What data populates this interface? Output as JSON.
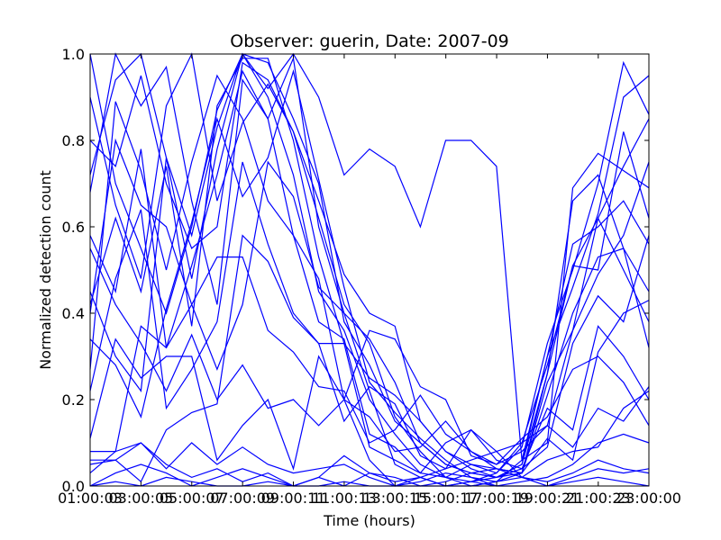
{
  "chart_data": {
    "type": "line",
    "title": "Observer: guerin, Date: 2007-09",
    "xlabel": "Time (hours)",
    "ylabel": "Normalized detection count",
    "xlim": [
      "01:00:00",
      "23:00:00"
    ],
    "ylim": [
      0.0,
      1.0
    ],
    "grid": false,
    "legend": "none",
    "line_color": "#0000ff",
    "x_tick_labels": [
      "01:00:03",
      "03:00:05",
      "05:00:07",
      "07:00:09",
      "09:00:11",
      "11:00:13",
      "13:00:15",
      "15:00:17",
      "17:00:19",
      "19:00:21",
      "21:00:23",
      "23:00:00"
    ],
    "y_tick_labels": [
      "0.0",
      "0.2",
      "0.4",
      "0.6",
      "0.8",
      "1.0"
    ],
    "x": [
      "01:00",
      "02:00",
      "03:00",
      "04:00",
      "05:00",
      "06:00",
      "07:00",
      "08:00",
      "09:00",
      "10:00",
      "11:00",
      "12:00",
      "13:00",
      "14:00",
      "15:00",
      "16:00",
      "17:00",
      "18:00",
      "19:00",
      "20:00",
      "21:00",
      "22:00",
      "23:00"
    ],
    "series": [
      {
        "values": [
          0.72,
          0.94,
          1.0,
          0.76,
          0.58,
          0.83,
          1.0,
          0.92,
          1.0,
          0.9,
          0.72,
          0.78,
          0.74,
          0.6,
          0.8,
          0.8,
          0.74,
          0.06,
          0.1,
          0.69,
          0.77,
          0.73,
          0.69
        ]
      },
      {
        "values": [
          1.0,
          0.7,
          0.55,
          0.4,
          0.6,
          0.87,
          1.0,
          0.98,
          0.85,
          0.7,
          0.38,
          0.28,
          0.15,
          0.1,
          0.05,
          0.03,
          0.02,
          0.05,
          0.26,
          0.51,
          0.62,
          0.74,
          0.85
        ]
      },
      {
        "values": [
          0.58,
          0.45,
          0.78,
          0.32,
          0.51,
          0.72,
          0.96,
          0.85,
          0.99,
          0.6,
          0.4,
          0.22,
          0.05,
          0.02,
          0.0,
          0.01,
          0.02,
          0.05,
          0.3,
          0.56,
          0.6,
          0.66,
          0.56
        ]
      },
      {
        "values": [
          0.42,
          0.62,
          0.45,
          0.74,
          0.37,
          0.88,
          0.99,
          0.99,
          0.8,
          0.53,
          0.33,
          0.25,
          0.21,
          0.15,
          0.08,
          0.05,
          0.04,
          0.03,
          0.21,
          0.4,
          0.53,
          0.55,
          0.45
        ]
      },
      {
        "values": [
          0.27,
          0.89,
          0.73,
          0.5,
          0.75,
          0.95,
          0.85,
          0.66,
          0.58,
          0.48,
          0.2,
          0.06,
          0.0,
          0.02,
          0.04,
          0.06,
          0.08,
          0.1,
          0.14,
          0.36,
          0.49,
          0.58,
          0.75
        ]
      },
      {
        "values": [
          0.8,
          0.74,
          0.95,
          0.7,
          0.55,
          0.6,
          0.98,
          0.94,
          0.82,
          0.62,
          0.42,
          0.33,
          0.16,
          0.08,
          0.02,
          0.01,
          0.03,
          0.09,
          0.33,
          0.5,
          0.7,
          0.98,
          0.86
        ]
      },
      {
        "values": [
          0.45,
          0.3,
          0.22,
          0.76,
          0.48,
          0.78,
          1.0,
          0.9,
          0.72,
          0.45,
          0.36,
          0.2,
          0.12,
          0.05,
          0.02,
          0.0,
          0.01,
          0.03,
          0.24,
          0.36,
          0.62,
          0.5,
          0.38
        ]
      },
      {
        "values": [
          0.22,
          0.48,
          0.64,
          0.18,
          0.27,
          0.38,
          0.75,
          0.56,
          0.4,
          0.33,
          0.33,
          0.09,
          0.06,
          0.03,
          0.1,
          0.13,
          0.06,
          0.04,
          0.18,
          0.13,
          0.37,
          0.3,
          0.2
        ]
      },
      {
        "values": [
          0.08,
          0.08,
          0.37,
          0.32,
          0.42,
          0.53,
          0.53,
          0.36,
          0.31,
          0.23,
          0.22,
          0.1,
          0.13,
          0.21,
          0.12,
          0.08,
          0.04,
          0.03,
          0.11,
          0.06,
          0.31,
          0.4,
          0.43
        ]
      },
      {
        "values": [
          0.05,
          0.06,
          0.01,
          0.13,
          0.17,
          0.19,
          0.58,
          0.52,
          0.39,
          0.33,
          0.15,
          0.23,
          0.19,
          0.07,
          0.04,
          0.13,
          0.08,
          0.02,
          0.06,
          0.08,
          0.09,
          0.18,
          0.22
        ]
      },
      {
        "values": [
          0.11,
          0.34,
          0.25,
          0.3,
          0.3,
          0.06,
          0.14,
          0.2,
          0.04,
          0.3,
          0.2,
          0.16,
          0.08,
          0.09,
          0.15,
          0.08,
          0.05,
          0.11,
          0.16,
          0.27,
          0.3,
          0.24,
          0.14
        ]
      },
      {
        "values": [
          0.0,
          0.03,
          0.05,
          0.03,
          0.0,
          0.02,
          0.04,
          0.02,
          0.0,
          0.02,
          0.07,
          0.03,
          0.02,
          0.0,
          0.01,
          0.03,
          0.04,
          0.02,
          0.01,
          0.03,
          0.06,
          0.04,
          0.03
        ]
      },
      {
        "values": [
          0.06,
          0.06,
          0.1,
          0.04,
          0.1,
          0.05,
          0.09,
          0.05,
          0.03,
          0.04,
          0.05,
          0.02,
          0.0,
          0.01,
          0.03,
          0.02,
          0.0,
          0.01,
          0.02,
          0.05,
          0.1,
          0.12,
          0.1
        ]
      },
      {
        "values": [
          0.0,
          0.01,
          0.0,
          0.02,
          0.01,
          0.0,
          0.0,
          0.01,
          0.0,
          0.0,
          0.01,
          0.0,
          0.0,
          0.0,
          0.0,
          0.01,
          0.0,
          0.0,
          0.0,
          0.01,
          0.02,
          0.01,
          0.0
        ]
      },
      {
        "values": [
          0.4,
          0.8,
          0.65,
          0.6,
          0.42,
          0.27,
          0.42,
          0.75,
          0.67,
          0.46,
          0.4,
          0.34,
          0.24,
          0.1,
          0.05,
          0.03,
          0.02,
          0.04,
          0.09,
          0.33,
          0.44,
          0.38,
          0.58
        ]
      },
      {
        "values": [
          0.9,
          0.65,
          0.48,
          0.88,
          1.0,
          0.66,
          0.84,
          0.93,
          0.82,
          0.66,
          0.49,
          0.4,
          0.37,
          0.15,
          0.08,
          0.04,
          0.02,
          0.03,
          0.26,
          0.66,
          0.72,
          0.55,
          0.32
        ]
      },
      {
        "values": [
          0.34,
          0.28,
          0.16,
          0.41,
          0.61,
          0.85,
          0.67,
          0.76,
          0.96,
          0.71,
          0.46,
          0.24,
          0.17,
          0.11,
          0.06,
          0.02,
          0.01,
          0.06,
          0.3,
          0.46,
          0.63,
          0.9,
          0.95
        ]
      },
      {
        "values": [
          0.68,
          1.0,
          0.88,
          0.97,
          0.66,
          0.42,
          0.94,
          0.85,
          0.58,
          0.38,
          0.34,
          0.12,
          0.09,
          0.03,
          0.02,
          0.05,
          0.03,
          0.1,
          0.28,
          0.51,
          0.5,
          0.82,
          0.62
        ]
      },
      {
        "values": [
          0.03,
          0.08,
          0.1,
          0.05,
          0.02,
          0.04,
          0.01,
          0.03,
          0.0,
          0.02,
          0.0,
          0.03,
          0.01,
          0.02,
          0.0,
          0.0,
          0.01,
          0.02,
          0.0,
          0.02,
          0.04,
          0.03,
          0.04
        ]
      },
      {
        "values": [
          0.55,
          0.42,
          0.33,
          0.22,
          0.35,
          0.2,
          0.28,
          0.18,
          0.2,
          0.14,
          0.2,
          0.36,
          0.34,
          0.23,
          0.2,
          0.07,
          0.05,
          0.08,
          0.14,
          0.09,
          0.18,
          0.15,
          0.23
        ]
      }
    ]
  }
}
